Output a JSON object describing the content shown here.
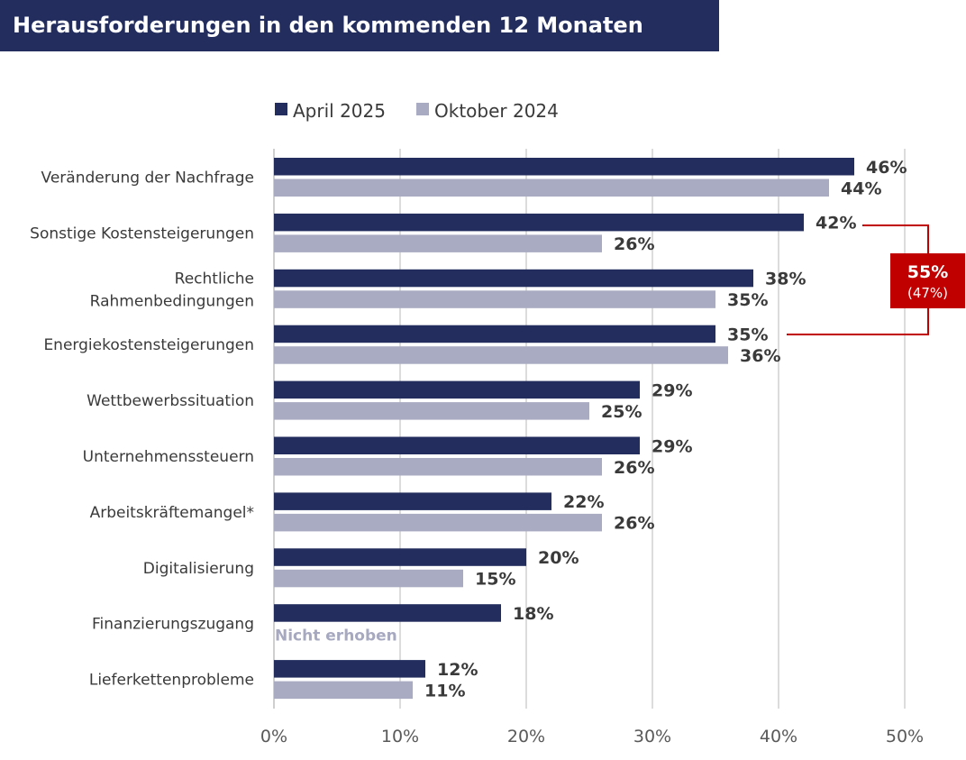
{
  "title": "Herausforderungen in den kommenden 12 Monaten",
  "colors": {
    "april": "#232e5e",
    "oktober": "#a9abc2",
    "callout": "#c00000",
    "grid": "#d0d0d0"
  },
  "callout": {
    "main": "55%",
    "sub": "(47%)"
  },
  "chart_data": {
    "type": "bar",
    "orientation": "horizontal",
    "title": "Herausforderungen in den kommenden 12 Monaten",
    "xlim": [
      0,
      50
    ],
    "x_ticks": [
      "0%",
      "10%",
      "20%",
      "30%",
      "40%",
      "50%"
    ],
    "grid": true,
    "legend_position": "top",
    "categories": [
      [
        "Veränderung der Nachfrage"
      ],
      [
        "Sonstige Kostensteigerungen"
      ],
      [
        "Rechtliche",
        "Rahmenbedingungen"
      ],
      [
        "Energiekostensteigerungen"
      ],
      [
        "Wettbewerbssituation"
      ],
      [
        "Unternehmenssteuern"
      ],
      [
        "Arbeitskräftemangel*"
      ],
      [
        "Digitalisierung"
      ],
      [
        "Finanzierungszugang"
      ],
      [
        "Lieferkettenprobleme"
      ]
    ],
    "series": [
      {
        "name": "April 2025",
        "color": "#232e5e",
        "values": [
          46,
          42,
          38,
          35,
          29,
          29,
          22,
          20,
          18,
          12
        ],
        "labels": [
          "46%",
          "42%",
          "38%",
          "35%",
          "29%",
          "29%",
          "22%",
          "20%",
          "18%",
          "12%"
        ]
      },
      {
        "name": "Oktober 2024",
        "color": "#a9abc2",
        "values": [
          44,
          26,
          35,
          36,
          25,
          26,
          26,
          15,
          null,
          11
        ],
        "labels": [
          "44%",
          "26%",
          "35%",
          "36%",
          "25%",
          "26%",
          "26%",
          "15%",
          "Nicht erhoben",
          "11%"
        ]
      }
    ]
  }
}
